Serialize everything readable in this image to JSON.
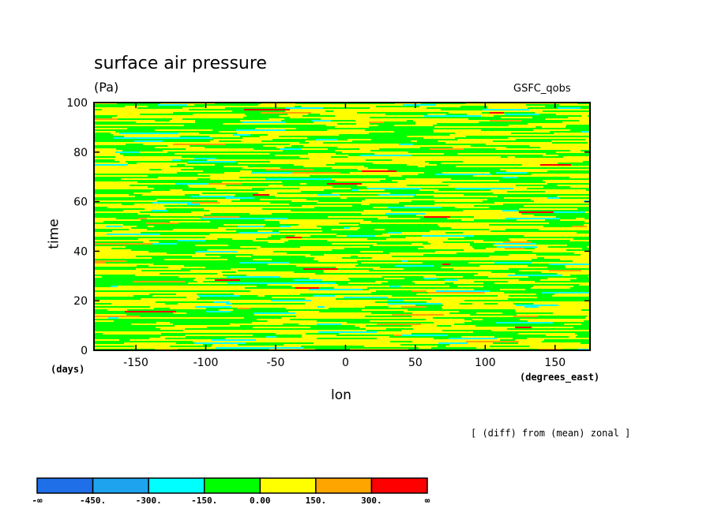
{
  "chart_data": {
    "type": "heatmap",
    "title": "surface air pressure",
    "units": "(Pa)",
    "dataset": "GSFC_qobs",
    "xlabel": "lon",
    "ylabel": "time",
    "x_unit": "(degrees_east)",
    "y_unit": "(days)",
    "note": "[ (diff) from (mean) zonal ]",
    "xlim": [
      -180,
      175
    ],
    "ylim": [
      0,
      100
    ],
    "x_ticks": [
      -150,
      -100,
      -50,
      0,
      50,
      100,
      150
    ],
    "y_ticks": [
      0,
      20,
      40,
      60,
      80,
      100
    ],
    "levels": [
      -450,
      -300,
      -150,
      0,
      150,
      300
    ],
    "colorbar": {
      "labels": [
        "-∞",
        "-450.",
        "-300.",
        "-150.",
        "0.00",
        "150.",
        "300.",
        "∞"
      ],
      "colors": [
        "#1f6fe8",
        "#1ea4ee",
        "#00ffff",
        "#00ff00",
        "#ffff00",
        "#ffa500",
        "#ff0000"
      ]
    },
    "field_description_values": {
      "dominant_range": [
        -150,
        150
      ],
      "dominant_bins": [
        "-150 to 0",
        "0 to 150"
      ]
    }
  }
}
